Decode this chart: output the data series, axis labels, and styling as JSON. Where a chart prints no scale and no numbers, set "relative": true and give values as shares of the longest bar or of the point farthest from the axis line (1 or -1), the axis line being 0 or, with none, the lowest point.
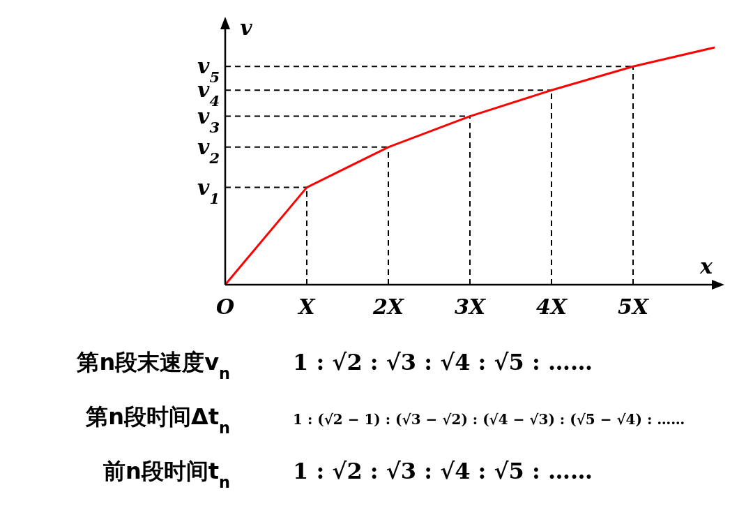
{
  "chart_data": {
    "type": "line",
    "relative": true,
    "xlabel": "x",
    "ylabel": "v",
    "line_style": "solid",
    "categories": [
      "O",
      "X",
      "2X",
      "3X",
      "4X",
      "5X",
      null
    ],
    "series": [
      {
        "color": "#ff0000",
        "values": [
          0,
          0.41,
          0.58,
          0.71,
          0.82,
          0.92,
          1
        ]
      }
    ],
    "ref_lines": [
      {
        "axis": "y",
        "value": 0.41,
        "label": "v$_{1}$",
        "color": "#000000",
        "line_style": "dashed"
      },
      {
        "axis": "y",
        "value": 0.58,
        "label": "v$_{2}$",
        "color": "#000000",
        "line_style": "dashed"
      },
      {
        "axis": "y",
        "value": 0.71,
        "label": "v$_{3}$",
        "color": "#000000",
        "line_style": "dashed"
      },
      {
        "axis": "y",
        "value": 0.82,
        "label": "v$_{4}$",
        "color": "#000000",
        "line_style": "dashed"
      },
      {
        "axis": "y",
        "value": 0.92,
        "label": "v$_{5}$",
        "color": "#000000",
        "line_style": "dashed"
      },
      {
        "axis": "x",
        "value": "X",
        "color": "#000000",
        "line_style": "dashed"
      },
      {
        "axis": "x",
        "value": "2X",
        "color": "#000000",
        "line_style": "dashed"
      },
      {
        "axis": "x",
        "value": "3X",
        "color": "#000000",
        "line_style": "dashed"
      },
      {
        "axis": "x",
        "value": "4X",
        "color": "#000000",
        "line_style": "dashed"
      },
      {
        "axis": "x",
        "value": "5X",
        "color": "#000000",
        "line_style": "dashed"
      }
    ],
    "annotations": [
      "第n段末速度v$_{n}$",
      "1 : √2 : √3 : √4 : √5 : ……",
      "第n段时间Δt$_{n}$",
      "1 : (√2 − 1) : (√3 − √2) : (√4 − √3) : (√5 − √4) : ……",
      "前n段时间t$_{n}$",
      "1 : √2 : √3 : √4 : √5 : ……"
    ]
  }
}
